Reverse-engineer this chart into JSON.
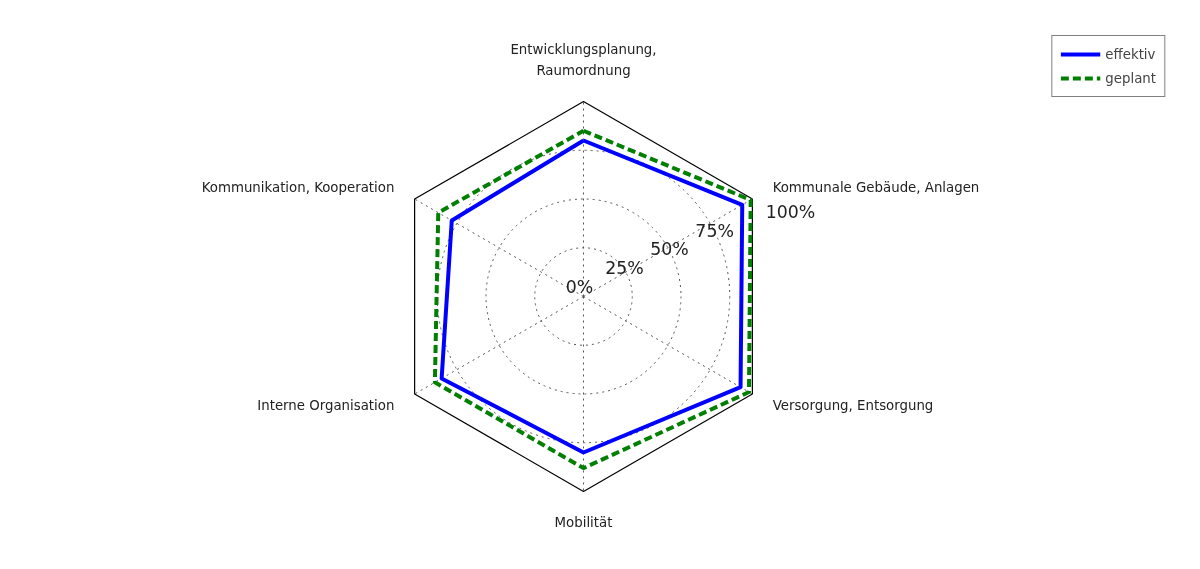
{
  "chart_data": {
    "type": "radar",
    "categories": [
      "Entwicklungsplanung,\nRaumordnung",
      "Kommunale Gebäude, Anlagen",
      "Versorgung, Entsorgung",
      "Mobilität",
      "Interne Organisation",
      "Kommunikation, Kooperation"
    ],
    "series": [
      {
        "name": "effektiv",
        "color": "#0000ff",
        "line_style": "solid",
        "values": [
          80,
          94,
          93,
          80,
          84,
          78
        ]
      },
      {
        "name": "geplant",
        "color": "#007f00",
        "line_style": "dashed",
        "values": [
          85,
          99,
          98,
          88,
          88,
          86
        ]
      }
    ],
    "ylim": [
      0,
      100
    ],
    "yticks": [
      {
        "value": 0,
        "label": "0%"
      },
      {
        "value": 25,
        "label": "25%"
      },
      {
        "value": 50,
        "label": "50%"
      },
      {
        "value": 75,
        "label": "75%"
      },
      {
        "value": 100,
        "label": "100%"
      }
    ],
    "grid": true,
    "legend": "top right",
    "marker": "none"
  }
}
